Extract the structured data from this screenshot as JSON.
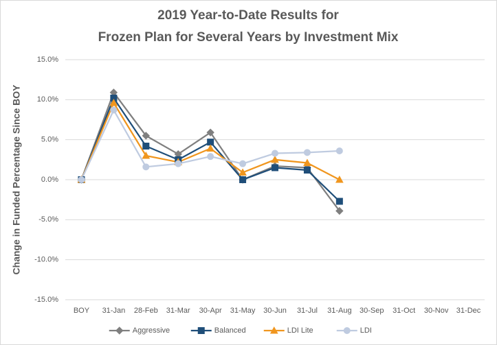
{
  "chart_data": {
    "type": "line",
    "title": [
      "2019 Year-to-Date Results for",
      "Frozen Plan for Several Years by Investment Mix"
    ],
    "y_label": "Change in Funded Percentage Since BOY",
    "categories": [
      "BOY",
      "31-Jan",
      "28-Feb",
      "31-Mar",
      "30-Apr",
      "31-May",
      "30-Jun",
      "31-Jul",
      "31-Aug",
      "30-Sep",
      "31-Oct",
      "30-Nov",
      "31-Dec"
    ],
    "series": [
      {
        "name": "Aggressive",
        "color": "#7f7f7f",
        "marker": "diamond",
        "values": [
          0,
          10.9,
          5.5,
          3.2,
          5.9,
          0,
          1.7,
          1.5,
          -3.9,
          null,
          null,
          null,
          null
        ]
      },
      {
        "name": "Balanced",
        "color": "#1f4e79",
        "marker": "square",
        "values": [
          0,
          10.2,
          4.2,
          2.5,
          4.7,
          0,
          1.5,
          1.2,
          -2.7,
          null,
          null,
          null,
          null
        ]
      },
      {
        "name": "LDI Lite",
        "color": "#f0961e",
        "marker": "triangle",
        "values": [
          0,
          9.6,
          3.0,
          2.2,
          3.9,
          0.9,
          2.5,
          2.1,
          0.0,
          null,
          null,
          null,
          null
        ]
      },
      {
        "name": "LDI",
        "color": "#bfcbe0",
        "marker": "circle",
        "values": [
          0,
          8.7,
          1.6,
          2.0,
          2.9,
          2.0,
          3.3,
          3.4,
          3.6,
          null,
          null,
          null,
          null
        ]
      }
    ],
    "ylim": [
      -15,
      15
    ],
    "yticks": [
      {
        "value": -15,
        "label": "-15.0%"
      },
      {
        "value": -10,
        "label": "-10.0%"
      },
      {
        "value": -5,
        "label": "-5.0%"
      },
      {
        "value": 0,
        "label": "0.0%"
      },
      {
        "value": 5,
        "label": "5.0%"
      },
      {
        "value": 10,
        "label": "10.0%"
      },
      {
        "value": 15,
        "label": "15.0%"
      }
    ],
    "grid": true,
    "legend": "bottom"
  }
}
